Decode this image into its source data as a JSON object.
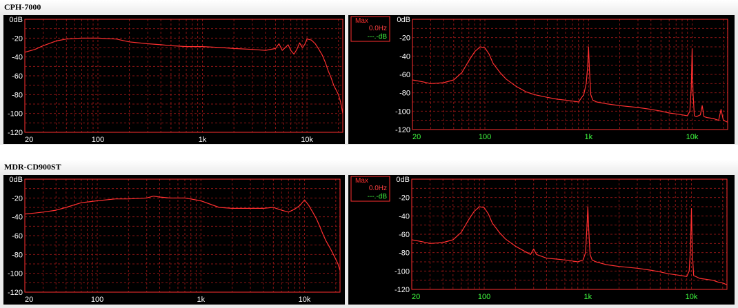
{
  "sections": [
    {
      "title": "CPH-7000"
    },
    {
      "title": "MDR-CD900ST"
    }
  ],
  "colors": {
    "background": "#000000",
    "trace": "#ff3030",
    "grid": "#8a1414",
    "axis_text": "#ff4040",
    "hz_labels": "#40ff40",
    "db_labels": "#ffffff",
    "section_bg": "#ebebeb"
  },
  "legend": {
    "title": "Max",
    "freq": "0.0Hz",
    "level": "---.-dB"
  },
  "chart_data": [
    {
      "id": "cph-response",
      "type": "line",
      "xscale": "log",
      "xlim": [
        20,
        22000
      ],
      "ylim": [
        -120,
        0
      ],
      "xticks": [
        20,
        100,
        1000,
        10000
      ],
      "xticklabels": [
        "20",
        "100",
        "1k",
        "10k"
      ],
      "yticks": [
        0,
        -20,
        -40,
        -60,
        -80,
        -100,
        -120
      ],
      "yticklabels": [
        "0dB",
        "-20",
        "-40",
        "-60",
        "-80",
        "-100",
        "-120"
      ],
      "ylabel_color": "db",
      "xlabel_color": "db",
      "legend": false,
      "series": [
        {
          "x": [
            20,
            25,
            30,
            40,
            50,
            70,
            100,
            150,
            200,
            300,
            400,
            500,
            700,
            1000,
            1500,
            2000,
            3000,
            4000,
            5000,
            5400,
            5800,
            6200,
            6600,
            7000,
            7500,
            8000,
            8500,
            9000,
            9500,
            10000,
            11000,
            12000,
            13000,
            14000,
            15000,
            16000,
            17000,
            18000,
            19000,
            20000,
            21000,
            22000
          ],
          "y": [
            -35,
            -32,
            -28,
            -23,
            -21,
            -20,
            -20,
            -21,
            -24,
            -26,
            -27,
            -28,
            -29,
            -29,
            -30,
            -31,
            -32,
            -33,
            -31,
            -26,
            -33,
            -30,
            -27,
            -33,
            -37,
            -32,
            -25,
            -30,
            -27,
            -21,
            -22,
            -26,
            -32,
            -38,
            -46,
            -55,
            -62,
            -70,
            -75,
            -80,
            -88,
            -100
          ]
        }
      ]
    },
    {
      "id": "cph-spectrum",
      "type": "line",
      "xscale": "log",
      "xlim": [
        20,
        22000
      ],
      "ylim": [
        -120,
        0
      ],
      "xticks": [
        20,
        100,
        1000,
        10000
      ],
      "xticklabels": [
        "20",
        "100",
        "1k",
        "10k"
      ],
      "yticks": [
        0,
        -20,
        -40,
        -60,
        -80,
        -100,
        -120
      ],
      "yticklabels": [
        "0dB",
        "-20",
        "-40",
        "-60",
        "-80",
        "-100",
        "-120"
      ],
      "ylabel_color": "db",
      "xlabel_color": "hz",
      "legend": true,
      "series": [
        {
          "x": [
            20,
            25,
            30,
            40,
            50,
            60,
            70,
            80,
            90,
            100,
            110,
            120,
            140,
            160,
            200,
            250,
            300,
            400,
            500,
            600,
            700,
            800,
            900,
            950,
            980,
            1000,
            1020,
            1050,
            1100,
            1200,
            1500,
            2000,
            3000,
            4000,
            5000,
            6000,
            7000,
            8000,
            9000,
            9500,
            9800,
            10000,
            10200,
            10500,
            11000,
            12000,
            12500,
            13000,
            14000,
            16000,
            18000,
            19000,
            20000,
            21000,
            22000
          ],
          "y": [
            -66,
            -68,
            -70,
            -69,
            -66,
            -58,
            -45,
            -35,
            -30,
            -31,
            -38,
            -48,
            -58,
            -65,
            -73,
            -79,
            -82,
            -85,
            -87,
            -88,
            -89,
            -90,
            -82,
            -70,
            -52,
            -30,
            -55,
            -82,
            -88,
            -90,
            -92,
            -94,
            -96,
            -98,
            -100,
            -102,
            -103,
            -104,
            -105,
            -100,
            -75,
            -32,
            -80,
            -105,
            -106,
            -104,
            -94,
            -106,
            -107,
            -108,
            -110,
            -98,
            -110,
            -111,
            -112
          ]
        }
      ]
    },
    {
      "id": "mdr-response",
      "type": "line",
      "xscale": "log",
      "xlim": [
        20,
        22000
      ],
      "ylim": [
        -120,
        0
      ],
      "xticks": [
        20,
        100,
        1000,
        10000
      ],
      "xticklabels": [
        "20",
        "100",
        "1k",
        "10k"
      ],
      "yticks": [
        0,
        -20,
        -40,
        -60,
        -80,
        -100,
        -120
      ],
      "yticklabels": [
        "0dB",
        "-20",
        "-40",
        "-60",
        "-80",
        "-100",
        "-120"
      ],
      "ylabel_color": "db",
      "xlabel_color": "db",
      "legend": false,
      "series": [
        {
          "x": [
            20,
            25,
            30,
            40,
            50,
            70,
            100,
            150,
            200,
            300,
            350,
            400,
            500,
            700,
            1000,
            1500,
            2000,
            3000,
            4000,
            5000,
            6000,
            7000,
            8000,
            9000,
            10000,
            11000,
            12000,
            13000,
            14000,
            15000,
            16000,
            17000,
            18000,
            19000,
            20000,
            21000,
            22000
          ],
          "y": [
            -37,
            -36,
            -35,
            -33,
            -30,
            -25,
            -23,
            -21,
            -21,
            -20,
            -18,
            -19,
            -20,
            -20,
            -23,
            -30,
            -31,
            -31,
            -31,
            -30,
            -33,
            -35,
            -32,
            -28,
            -22,
            -28,
            -35,
            -42,
            -50,
            -58,
            -65,
            -70,
            -75,
            -80,
            -85,
            -90,
            -97
          ]
        }
      ]
    },
    {
      "id": "mdr-spectrum",
      "type": "line",
      "xscale": "log",
      "xlim": [
        20,
        22000
      ],
      "ylim": [
        -120,
        0
      ],
      "xticks": [
        20,
        100,
        1000,
        10000
      ],
      "xticklabels": [
        "20",
        "100",
        "1k",
        "10k"
      ],
      "yticks": [
        0,
        -20,
        -40,
        -60,
        -80,
        -100,
        -120
      ],
      "yticklabels": [
        "0dB",
        "-20",
        "-40",
        "-60",
        "-80",
        "-100",
        "-120"
      ],
      "ylabel_color": "db",
      "xlabel_color": "hz",
      "legend": true,
      "series": [
        {
          "x": [
            20,
            25,
            30,
            40,
            50,
            60,
            70,
            80,
            90,
            100,
            110,
            120,
            140,
            160,
            200,
            250,
            280,
            300,
            320,
            400,
            500,
            600,
            700,
            800,
            900,
            950,
            980,
            1000,
            1020,
            1050,
            1100,
            1200,
            1500,
            2000,
            3000,
            4000,
            5000,
            6000,
            7000,
            8000,
            9000,
            9500,
            9800,
            10000,
            10200,
            10500,
            11000,
            12000,
            16000,
            18000,
            20000,
            22000
          ],
          "y": [
            -66,
            -68,
            -70,
            -69,
            -66,
            -58,
            -45,
            -35,
            -30,
            -31,
            -38,
            -48,
            -58,
            -65,
            -73,
            -79,
            -82,
            -76,
            -82,
            -86,
            -87,
            -88,
            -89,
            -90,
            -88,
            -80,
            -52,
            -30,
            -55,
            -82,
            -88,
            -90,
            -93,
            -95,
            -97,
            -99,
            -101,
            -103,
            -104,
            -105,
            -106,
            -100,
            -75,
            -32,
            -80,
            -105,
            -106,
            -108,
            -110,
            -112,
            -113,
            -115
          ]
        }
      ]
    }
  ]
}
